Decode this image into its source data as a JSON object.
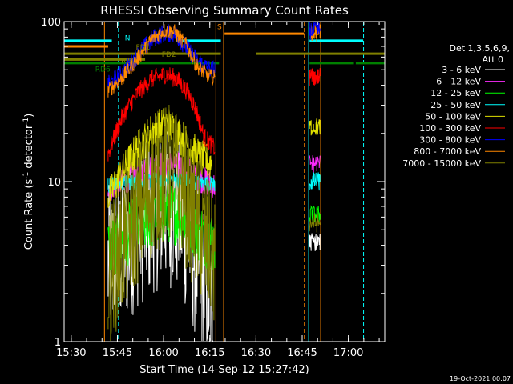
{
  "chart_data": {
    "type": "line",
    "title": "RHESSI Observing Summary Count Rates",
    "xlabel": "Start Time (14-Sep-12 15:27:42)",
    "ylabel_main": "Count Rate (s",
    "ylabel_sup": "-1",
    "ylabel_mid": " detector",
    "ylabel_sup2": "-1",
    "ylabel_end": ")",
    "xlim": [
      15.4617,
      17.1967
    ],
    "ylim": [
      1,
      100
    ],
    "yscale": "log",
    "x_ticks": [
      {
        "value": 15.5,
        "label": "15:30"
      },
      {
        "value": 15.75,
        "label": "15:45"
      },
      {
        "value": 16.0,
        "label": "16:00"
      },
      {
        "value": 16.25,
        "label": "16:15"
      },
      {
        "value": 16.5,
        "label": "16:30"
      },
      {
        "value": 16.75,
        "label": "16:45"
      },
      {
        "value": 17.0,
        "label": "17:00"
      }
    ],
    "y_ticks": [
      {
        "value": 1,
        "label": "1"
      },
      {
        "value": 10,
        "label": "10"
      },
      {
        "value": 100,
        "label": "100"
      }
    ],
    "legend_header": [
      "Det 1,3,5,6,9,",
      "Att 0"
    ],
    "legend_placement": "right",
    "series": [
      {
        "name": "3 - 6 keV",
        "color": "#ffffff",
        "x": [
          15.7,
          15.78,
          15.86,
          15.94,
          16.02,
          16.1,
          16.16,
          16.22,
          16.27
        ],
        "y": [
          3.0,
          3.8,
          5.0,
          6.2,
          7.0,
          5.8,
          3.6,
          2.3,
          1.6
        ]
      },
      {
        "name": "6 - 12 keV",
        "color": "#ff2bff",
        "x": [
          15.7,
          15.78,
          15.86,
          15.94,
          16.02,
          16.1,
          16.16,
          16.22,
          16.28
        ],
        "y": [
          9.0,
          10.0,
          11.3,
          12.5,
          13.0,
          12.3,
          11.3,
          10.1,
          9.4
        ]
      },
      {
        "name": "12 - 25 keV",
        "color": "#00ff00",
        "x": [
          15.7,
          15.78,
          15.86,
          15.94,
          16.02,
          16.1,
          16.16,
          16.22,
          16.28
        ],
        "y": [
          3.8,
          4.4,
          5.3,
          6.0,
          6.5,
          6.2,
          5.4,
          4.6,
          4.1
        ]
      },
      {
        "name": "25 - 50 keV",
        "color": "#00ffff",
        "x": [
          15.7,
          15.78,
          15.86,
          15.94,
          16.02,
          16.1,
          16.16,
          16.22,
          16.28
        ],
        "y": [
          9.5,
          9.8,
          10.0,
          10.2,
          10.4,
          10.2,
          10.0,
          9.8,
          9.6
        ]
      },
      {
        "name": "50 - 100 keV",
        "color": "#e0e000",
        "x": [
          15.7,
          15.78,
          15.86,
          15.94,
          16.02,
          16.08,
          16.14,
          16.2,
          16.26
        ],
        "y": [
          8.0,
          11.5,
          16.0,
          21.0,
          23.0,
          20.0,
          16.5,
          14.0,
          13.0
        ]
      },
      {
        "name": "100 - 300 keV",
        "color": "#ff0000",
        "x": [
          15.7,
          15.78,
          15.86,
          15.94,
          16.02,
          16.08,
          16.14,
          16.18,
          16.22,
          16.28
        ],
        "y": [
          15.0,
          26.0,
          36.0,
          44.0,
          47.0,
          43.0,
          35.0,
          27.0,
          19.0,
          16.0
        ]
      },
      {
        "name": "300 - 800 keV",
        "color": "#0000ff",
        "x": [
          15.7,
          15.78,
          15.86,
          15.94,
          16.0,
          16.06,
          16.12,
          16.18,
          16.24,
          16.28
        ],
        "y": [
          40.0,
          48.0,
          62.0,
          78.0,
          85.0,
          84.0,
          70.0,
          57.0,
          51.0,
          50.0
        ]
      },
      {
        "name": "800 - 7000 keV",
        "color": "#ff8800",
        "x": [
          15.7,
          15.78,
          15.86,
          15.94,
          16.0,
          16.06,
          16.12,
          16.18,
          16.24,
          16.28
        ],
        "y": [
          37.0,
          45.0,
          59.0,
          78.0,
          88.0,
          86.0,
          72.0,
          53.0,
          46.0,
          44.0
        ]
      },
      {
        "name": "7000 - 15000 keV",
        "color": "#808000",
        "x": [
          15.7,
          15.78,
          15.86,
          15.94,
          16.02,
          16.1,
          16.16,
          16.22,
          16.28
        ],
        "y": [
          2.5,
          4.0,
          6.3,
          9.3,
          11.5,
          9.2,
          6.1,
          4.2,
          3.2
        ]
      }
    ],
    "second_segment": {
      "x": [
        16.79,
        16.85
      ],
      "levels": [
        {
          "series": "800 - 7000 keV",
          "y": 84
        },
        {
          "series": "300 - 800 keV",
          "y": 88
        },
        {
          "series": "100 - 300 keV",
          "y": 45
        },
        {
          "series": "50 - 100 keV",
          "y": 22
        },
        {
          "series": "6 - 12 keV",
          "y": 13
        },
        {
          "series": "25 - 50 keV",
          "y": 10
        },
        {
          "series": "12 - 25 keV",
          "y": 6.2
        },
        {
          "series": "7000 - 15000 keV",
          "y": 5.5
        },
        {
          "series": "3 - 6 keV",
          "y": 4.2
        }
      ]
    },
    "flag_bars": [
      {
        "label": "N",
        "color": "#00ffff",
        "y": 76,
        "segments": [
          [
            15.46,
            15.72
          ],
          [
            16.07,
            16.31
          ],
          [
            16.79,
            17.08
          ]
        ]
      },
      {
        "label": "FD1",
        "color": "#ff8800",
        "y": 70,
        "segments": [
          [
            15.46,
            15.7
          ]
        ]
      },
      {
        "label": "FD2",
        "color": "#808000",
        "y": 63,
        "segments": [
          [
            15.46,
            16.31
          ],
          [
            16.5,
            17.2
          ]
        ]
      },
      {
        "label": "RD0",
        "color": "#808000",
        "y": 58,
        "segments": [
          [
            15.46,
            15.9
          ]
        ]
      },
      {
        "label": "RD6",
        "color": "#008000",
        "y": 55,
        "segments": [
          [
            15.46,
            16.3
          ],
          [
            16.79,
            17.03
          ],
          [
            17.04,
            17.2
          ]
        ]
      },
      {
        "label": "S",
        "color": "#ff8800",
        "y": 84,
        "segments": [
          [
            16.33,
            16.76
          ],
          [
            16.8,
            16.84
          ]
        ]
      }
    ],
    "flag_labels": [
      {
        "text": "N",
        "color": "#00ffff",
        "x": 15.79,
        "y": 80
      },
      {
        "text": "FD1",
        "color": "#808000",
        "x": 15.85,
        "y": 70
      },
      {
        "text": "FD2",
        "color": "#808000",
        "x": 15.99,
        "y": 63
      },
      {
        "text": "RD0",
        "color": "#808000",
        "x": 15.77,
        "y": 58
      },
      {
        "text": "RD6",
        "color": "#008000",
        "x": 15.63,
        "y": 51
      },
      {
        "text": "S",
        "color": "#ff8800",
        "x": 16.29,
        "y": 94
      }
    ],
    "vertical_markers": [
      {
        "x": 15.4617,
        "color": "#00ffff",
        "style": "solid"
      },
      {
        "x": 15.68,
        "color": "#ff8800",
        "style": "solid"
      },
      {
        "x": 15.756,
        "color": "#00ffff",
        "style": "dashed"
      },
      {
        "x": 16.283,
        "color": "#ff8800",
        "style": "solid"
      },
      {
        "x": 16.325,
        "color": "#ff8800",
        "style": "solid"
      },
      {
        "x": 16.762,
        "color": "#ff8800",
        "style": "dashed"
      },
      {
        "x": 16.785,
        "color": "#00ffff",
        "style": "solid"
      },
      {
        "x": 16.85,
        "color": "#ff8800",
        "style": "solid"
      },
      {
        "x": 17.082,
        "color": "#00ffff",
        "style": "dashed"
      }
    ],
    "grid": false
  },
  "footer": {
    "generated": "19-Oct-2021 00:07"
  }
}
